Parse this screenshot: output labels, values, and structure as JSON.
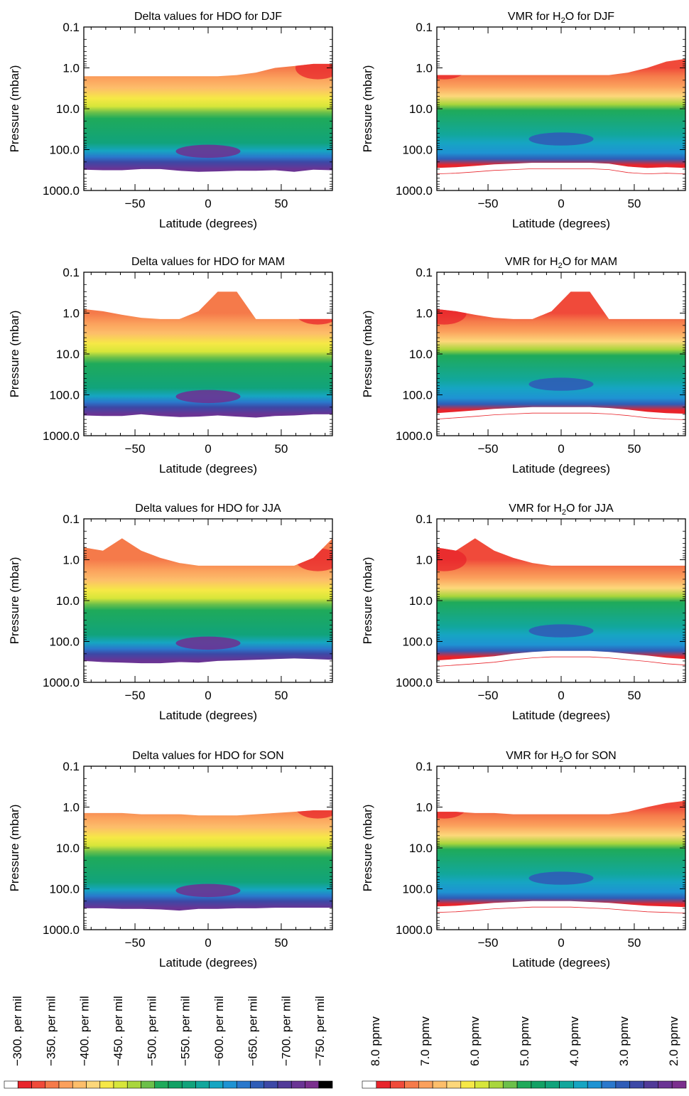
{
  "chart_data": [
    {
      "type": "heatmap",
      "title": "Delta values for HDO for DJF",
      "xlabel": "Latitude (degrees)",
      "ylabel": "Pressure (mbar)",
      "xlim": [
        -85,
        85
      ],
      "ylim": [
        1000.0,
        0.1
      ],
      "yscale": "log",
      "x_ticks": [
        "−50",
        "0",
        "50"
      ],
      "y_ticks": [
        "0.1",
        "1.0",
        "10.0",
        "100.0",
        "1000.0"
      ],
      "data_top": [
        1.6,
        1.6,
        1.6,
        1.6,
        1.6,
        1.6,
        1.6,
        1.6,
        1.5,
        1.3,
        1.0,
        0.9,
        0.8,
        0.8
      ],
      "data_bottom": [
        310,
        320,
        320,
        300,
        300,
        330,
        350,
        340,
        330,
        330,
        320,
        350,
        310,
        320
      ]
    },
    {
      "type": "heatmap",
      "title": "VMR for H₂O for DJF",
      "title_main": "VMR for H",
      "title_sub": "2",
      "title_tail": "O for DJF",
      "xlabel": "Latitude (degrees)",
      "ylabel": "Pressure (mbar)",
      "xlim": [
        -85,
        85
      ],
      "ylim": [
        1000.0,
        0.1
      ],
      "yscale": "log",
      "x_ticks": [
        "−50",
        "0",
        "50"
      ],
      "y_ticks": [
        "0.1",
        "1.0",
        "10.0",
        "100.0",
        "1000.0"
      ],
      "data_top": [
        1.5,
        1.5,
        1.5,
        1.5,
        1.5,
        1.5,
        1.5,
        1.5,
        1.5,
        1.5,
        1.3,
        1.0,
        0.7,
        0.6
      ],
      "data_bottom": [
        280,
        270,
        250,
        230,
        220,
        210,
        210,
        210,
        210,
        220,
        260,
        280,
        270,
        280
      ]
    },
    {
      "type": "heatmap",
      "title": "Delta values for HDO for MAM",
      "xlabel": "Latitude (degrees)",
      "ylabel": "Pressure (mbar)",
      "xlim": [
        -85,
        85
      ],
      "ylim": [
        1000.0,
        0.1
      ],
      "yscale": "log",
      "x_ticks": [
        "−50",
        "0",
        "50"
      ],
      "y_ticks": [
        "0.1",
        "1.0",
        "10.0",
        "100.0",
        "1000.0"
      ],
      "data_top": [
        0.8,
        0.9,
        1.1,
        1.3,
        1.4,
        1.4,
        0.9,
        0.3,
        0.3,
        1.4,
        1.4,
        1.4,
        1.4,
        1.4
      ],
      "data_bottom": [
        320,
        330,
        330,
        300,
        330,
        350,
        340,
        320,
        340,
        360,
        330,
        320,
        300,
        300
      ]
    },
    {
      "type": "heatmap",
      "title": "VMR for H₂O for MAM",
      "title_main": "VMR for H",
      "title_sub": "2",
      "title_tail": "O for MAM",
      "xlabel": "Latitude (degrees)",
      "ylabel": "Pressure (mbar)",
      "xlim": [
        -85,
        85
      ],
      "ylim": [
        1000.0,
        0.1
      ],
      "yscale": "log",
      "x_ticks": [
        "−50",
        "0",
        "50"
      ],
      "y_ticks": [
        "0.1",
        "1.0",
        "10.0",
        "100.0",
        "1000.0"
      ],
      "data_top": [
        0.8,
        0.9,
        1.1,
        1.3,
        1.4,
        1.4,
        0.9,
        0.3,
        0.3,
        1.4,
        1.4,
        1.4,
        1.4,
        1.4
      ],
      "data_bottom": [
        280,
        260,
        240,
        220,
        210,
        200,
        200,
        200,
        200,
        210,
        230,
        260,
        280,
        290
      ]
    },
    {
      "type": "heatmap",
      "title": "Delta values for HDO for JJA",
      "xlabel": "Latitude (degrees)",
      "ylabel": "Pressure (mbar)",
      "xlim": [
        -85,
        85
      ],
      "ylim": [
        1000.0,
        0.1
      ],
      "yscale": "log",
      "x_ticks": [
        "−50",
        "0",
        "50"
      ],
      "y_ticks": [
        "0.1",
        "1.0",
        "10.0",
        "100.0",
        "1000.0"
      ],
      "data_top": [
        0.5,
        0.6,
        0.3,
        0.6,
        0.9,
        1.2,
        1.4,
        1.4,
        1.4,
        1.4,
        1.4,
        1.4,
        0.9,
        0.3
      ],
      "data_bottom": [
        300,
        320,
        330,
        340,
        340,
        320,
        330,
        300,
        290,
        280,
        270,
        260,
        270,
        280
      ]
    },
    {
      "type": "heatmap",
      "title": "VMR for H₂O for JJA",
      "title_main": "VMR for H",
      "title_sub": "2",
      "title_tail": "O for JJA",
      "xlabel": "Latitude (degrees)",
      "ylabel": "Pressure (mbar)",
      "xlim": [
        -85,
        85
      ],
      "ylim": [
        1000.0,
        0.1
      ],
      "yscale": "log",
      "x_ticks": [
        "−50",
        "0",
        "50"
      ],
      "y_ticks": [
        "0.1",
        "1.0",
        "10.0",
        "100.0",
        "1000.0"
      ],
      "data_top": [
        0.5,
        0.6,
        0.3,
        0.6,
        0.9,
        1.2,
        1.4,
        1.4,
        1.4,
        1.4,
        1.4,
        1.4,
        1.4,
        1.4
      ],
      "data_bottom": [
        290,
        270,
        250,
        230,
        200,
        180,
        170,
        170,
        170,
        180,
        200,
        220,
        250,
        270
      ]
    },
    {
      "type": "heatmap",
      "title": "Delta values for HDO for SON",
      "xlabel": "Latitude (degrees)",
      "ylabel": "Pressure (mbar)",
      "xlim": [
        -85,
        85
      ],
      "ylim": [
        1000.0,
        0.1
      ],
      "yscale": "log",
      "x_ticks": [
        "−50",
        "0",
        "50"
      ],
      "y_ticks": [
        "0.1",
        "1.0",
        "10.0",
        "100.0",
        "1000.0"
      ],
      "data_top": [
        1.4,
        1.4,
        1.4,
        1.5,
        1.5,
        1.5,
        1.6,
        1.6,
        1.6,
        1.5,
        1.4,
        1.3,
        1.2,
        1.2
      ],
      "data_bottom": [
        300,
        300,
        310,
        310,
        320,
        340,
        310,
        310,
        300,
        300,
        290,
        290,
        290,
        290
      ]
    },
    {
      "type": "heatmap",
      "title": "VMR for H₂O for SON",
      "title_main": "VMR for H",
      "title_sub": "2",
      "title_tail": "O for SON",
      "xlabel": "Latitude (degrees)",
      "ylabel": "Pressure (mbar)",
      "xlim": [
        -85,
        85
      ],
      "ylim": [
        1000.0,
        0.1
      ],
      "yscale": "log",
      "x_ticks": [
        "−50",
        "0",
        "50"
      ],
      "y_ticks": [
        "0.1",
        "1.0",
        "10.0",
        "100.0",
        "1000.0"
      ],
      "data_top": [
        1.3,
        1.3,
        1.4,
        1.4,
        1.5,
        1.5,
        1.5,
        1.5,
        1.5,
        1.5,
        1.3,
        1.0,
        0.8,
        0.7
      ],
      "data_bottom": [
        270,
        260,
        240,
        220,
        210,
        200,
        200,
        200,
        210,
        220,
        240,
        260,
        270,
        280
      ]
    }
  ],
  "legend_hdo": {
    "labels": [
      "−300. per mil",
      "−350. per mil",
      "−400. per mil",
      "−450. per mil",
      "−500. per mil",
      "−550. per mil",
      "−600. per mil",
      "−650. per mil",
      "−700. per mil",
      "−750. per mil"
    ]
  },
  "legend_h2o": {
    "labels": [
      "8.0 ppmv",
      "7.0 ppmv",
      "6.0 ppmv",
      "5.0 ppmv",
      "4.0 ppmv",
      "3.0 ppmv",
      "2.0 ppmv"
    ]
  },
  "colorscale": [
    "#ffffff",
    "#e8242b",
    "#f04a3a",
    "#f57a4a",
    "#fba05c",
    "#fdbe6a",
    "#fdd77a",
    "#f6e846",
    "#d7e63a",
    "#a9d63c",
    "#6cc04a",
    "#1faa5a",
    "#12a164",
    "#11a37b",
    "#12a79c",
    "#16a5c2",
    "#1e93d3",
    "#2a78cc",
    "#2f5db7",
    "#3c48a6",
    "#513a98",
    "#6a3494",
    "#7b2f8e",
    "#000000"
  ]
}
